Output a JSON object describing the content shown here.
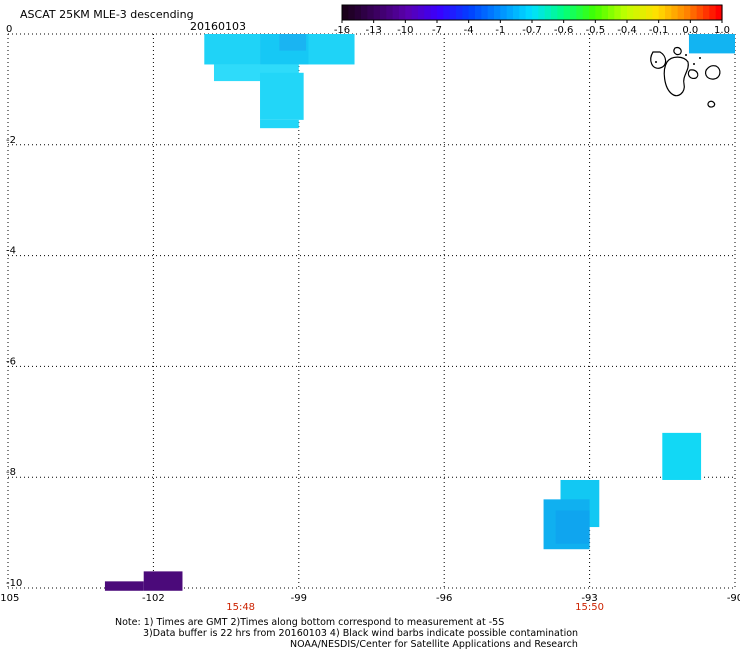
{
  "header": {
    "title": "ASCAT 25KM MLE-3 descending",
    "date": "20160103"
  },
  "colorbar": {
    "labels": [
      "-16",
      "-13",
      "-10",
      "-7",
      "-4",
      "-1",
      "-0.7",
      "-0.6",
      "-0.5",
      "-0.4",
      "-0.1",
      "0.0",
      "1.0"
    ],
    "colors": [
      "#1a001a",
      "#3b0060",
      "#5a00b0",
      "#3a00ff",
      "#0040ff",
      "#0090ff",
      "#00e0ff",
      "#00ff80",
      "#40ff00",
      "#c0ff00",
      "#ffe000",
      "#ff8000",
      "#ff0000"
    ]
  },
  "map": {
    "lon_range": [
      -105,
      -90
    ],
    "lat_range": [
      -10,
      0
    ],
    "x_ticks": [
      -105,
      -102,
      -99,
      -96,
      -93,
      -90
    ],
    "y_ticks": [
      0,
      -2,
      -4,
      -6,
      -8,
      -10
    ],
    "x_tick_labels": [
      "-105",
      "-102",
      "-99",
      "-96",
      "-93",
      "-90"
    ],
    "y_tick_labels": [
      "0",
      "-2",
      "-4",
      "-6",
      "-8",
      "-10"
    ],
    "time_labels": [
      {
        "lon": -100.2,
        "text": "15:48"
      },
      {
        "lon": -93.0,
        "text": "15:50"
      }
    ],
    "swaths": [
      {
        "lon0": -103.0,
        "lon1": -102.2,
        "lat0": -10.05,
        "lat1": -9.88,
        "color": "#4b0a7a"
      },
      {
        "lon0": -102.2,
        "lon1": -101.4,
        "lat0": -10.05,
        "lat1": -9.7,
        "color": "#4b0a7a"
      },
      {
        "lon0": -100.95,
        "lon1": -99.8,
        "lat0": -0.55,
        "lat1": 0.0,
        "color": "#1fd3f7"
      },
      {
        "lon0": -99.8,
        "lon1": -98.8,
        "lat0": -0.55,
        "lat1": 0.0,
        "color": "#16c8f5"
      },
      {
        "lon0": -98.8,
        "lon1": -97.85,
        "lat0": -0.55,
        "lat1": 0.0,
        "color": "#1fd3f7"
      },
      {
        "lon0": -100.75,
        "lon1": -99.0,
        "lat0": -0.85,
        "lat1": -0.55,
        "color": "#2edbfa"
      },
      {
        "lon0": -99.8,
        "lon1": -98.9,
        "lat0": -1.55,
        "lat1": -0.7,
        "color": "#22d6f8"
      },
      {
        "lon0": -99.8,
        "lon1": -99.0,
        "lat0": -1.7,
        "lat1": -1.55,
        "color": "#22d6f8"
      },
      {
        "lon0": -99.4,
        "lon1": -98.85,
        "lat0": -0.3,
        "lat1": 0.0,
        "color": "#1ab4f2"
      },
      {
        "lon0": -91.5,
        "lon1": -90.7,
        "lat0": -8.05,
        "lat1": -7.2,
        "color": "#12d8f5"
      },
      {
        "lon0": -93.6,
        "lon1": -92.8,
        "lat0": -8.9,
        "lat1": -8.05,
        "color": "#12c8f3"
      },
      {
        "lon0": -93.95,
        "lon1": -93.0,
        "lat0": -9.3,
        "lat1": -8.4,
        "color": "#10b0f0"
      },
      {
        "lon0": -93.7,
        "lon1": -93.0,
        "lat0": -9.2,
        "lat1": -8.6,
        "color": "#0fa5ef"
      },
      {
        "lon0": -90.95,
        "lon1": -90.0,
        "lat0": -0.35,
        "lat1": 0.0,
        "color": "#12b4f2"
      }
    ]
  },
  "footer": {
    "note_line1": "Note: 1) Times are GMT 2)Times along bottom correspond to measurement at -5S",
    "note_line2": "3)Data buffer is 22 hrs from 20160103 4) Black wind barbs indicate possible contamination",
    "credit": "NOAA/NESDIS/Center for Satellite Applications and Research"
  }
}
